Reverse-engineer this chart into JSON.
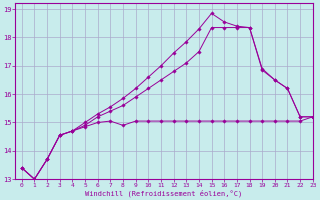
{
  "background_color": "#c8ecec",
  "grid_color": "#aaaacc",
  "line_color": "#990099",
  "xlabel": "Windchill (Refroidissement éolien,°C)",
  "xlim": [
    -0.5,
    23
  ],
  "ylim": [
    13,
    19.2
  ],
  "yticks": [
    13,
    14,
    15,
    16,
    17,
    18,
    19
  ],
  "xticks": [
    0,
    1,
    2,
    3,
    4,
    5,
    6,
    7,
    8,
    9,
    10,
    11,
    12,
    13,
    14,
    15,
    16,
    17,
    18,
    19,
    20,
    21,
    22,
    23
  ],
  "line1_x": [
    0,
    1,
    2,
    3,
    4,
    5,
    6,
    7,
    8,
    9,
    10,
    11,
    12,
    13,
    14,
    15,
    16,
    17,
    18,
    19,
    20,
    21,
    22,
    23
  ],
  "line1_y": [
    13.4,
    13.0,
    13.7,
    14.55,
    14.7,
    14.85,
    15.0,
    15.05,
    14.9,
    15.05,
    15.05,
    15.05,
    15.05,
    15.05,
    15.05,
    15.05,
    15.05,
    15.05,
    15.05,
    15.05,
    15.05,
    15.05,
    15.05,
    15.2
  ],
  "line2_x": [
    0,
    1,
    2,
    3,
    4,
    5,
    6,
    7,
    8,
    9,
    10,
    11,
    12,
    13,
    14,
    15,
    16,
    17,
    18,
    19,
    20,
    21,
    22,
    23
  ],
  "line2_y": [
    13.4,
    13.0,
    13.7,
    14.55,
    14.7,
    14.9,
    15.2,
    15.4,
    15.6,
    15.9,
    16.2,
    16.5,
    16.8,
    17.1,
    17.5,
    18.35,
    18.35,
    18.35,
    18.35,
    16.9,
    16.5,
    16.2,
    15.2,
    15.2
  ],
  "line3_x": [
    0,
    1,
    2,
    3,
    4,
    5,
    6,
    7,
    8,
    9,
    10,
    11,
    12,
    13,
    14,
    15,
    16,
    17,
    18,
    19,
    20,
    21,
    22,
    23
  ],
  "line3_y": [
    13.4,
    13.0,
    13.7,
    14.55,
    14.7,
    15.0,
    15.3,
    15.55,
    15.85,
    16.2,
    16.6,
    17.0,
    17.45,
    17.85,
    18.3,
    18.85,
    18.55,
    18.4,
    18.35,
    16.85,
    16.5,
    16.2,
    15.2,
    15.2
  ]
}
